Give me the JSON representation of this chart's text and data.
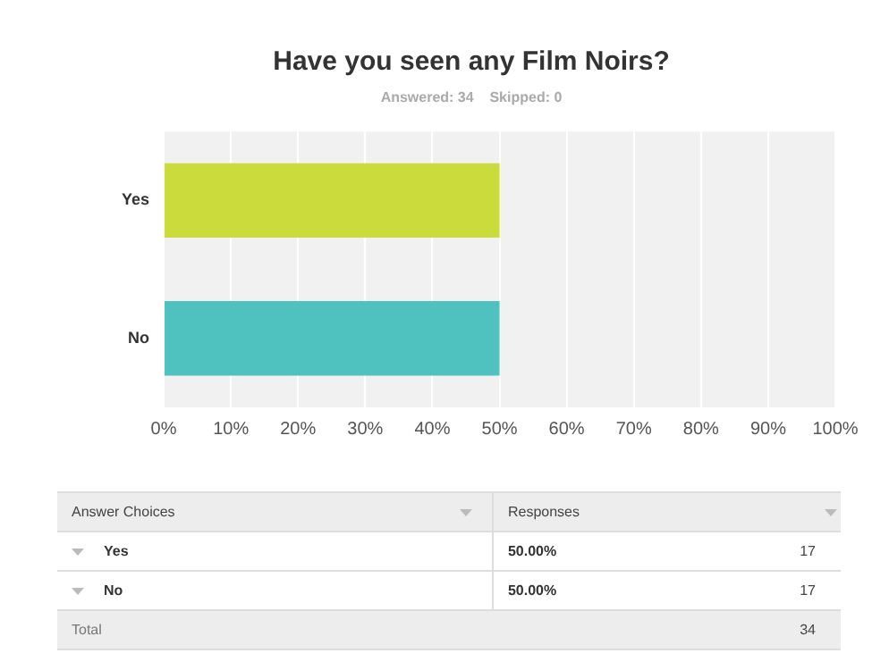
{
  "chart_data": {
    "type": "bar",
    "orientation": "horizontal",
    "title": "Have you seen any Film Noirs?",
    "subtitle": "Answered: 34    Skipped: 0",
    "categories": [
      "Yes",
      "No"
    ],
    "values": [
      50,
      50
    ],
    "colors": [
      "#cbdb3c",
      "#4fc1bf"
    ],
    "xlim": [
      0,
      100
    ],
    "xticks": [
      {
        "value": 0,
        "label": "0%"
      },
      {
        "value": 10,
        "label": "10%"
      },
      {
        "value": 20,
        "label": "20%"
      },
      {
        "value": 30,
        "label": "30%"
      },
      {
        "value": 40,
        "label": "40%"
      },
      {
        "value": 50,
        "label": "50%"
      },
      {
        "value": 60,
        "label": "60%"
      },
      {
        "value": 70,
        "label": "70%"
      },
      {
        "value": 80,
        "label": "80%"
      },
      {
        "value": 90,
        "label": "90%"
      },
      {
        "value": 100,
        "label": "100%"
      }
    ],
    "grid": "x",
    "annotations": [
      "Answer Choices",
      "Responses",
      "50.00%",
      "17",
      "50.00%",
      "17",
      "Total",
      "34"
    ]
  }
}
